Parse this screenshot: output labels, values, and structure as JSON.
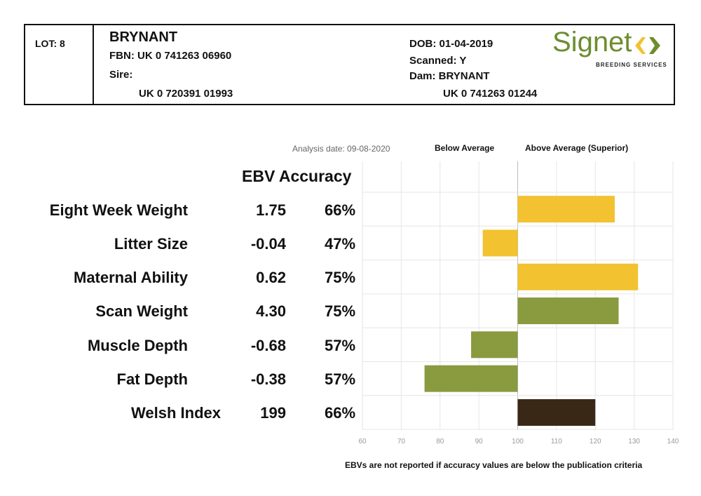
{
  "header": {
    "lot": "LOT: 8",
    "name": "BRYNANT",
    "fbn": "FBN: UK 0 741263 06960",
    "sire_label": "Sire:",
    "sire_id": "UK 0 720391 01993",
    "dob": "DOB: 01-04-2019",
    "scanned": "Scanned: Y",
    "dam": "Dam: BRYNANT",
    "dam_id": "UK 0 741263 01244"
  },
  "logo": {
    "word": "Signet",
    "subtitle": "BREEDING SERVICES",
    "green": "#6d8d2f",
    "yellow": "#f2c230"
  },
  "labels": {
    "analysis_date": "Analysis date: 09-08-2020",
    "below_average": "Below Average",
    "above_average": "Above Average (Superior)",
    "ebv_accuracy": "EBV Accuracy",
    "footnote": "EBVs are not reported if accuracy values are below the publication criteria"
  },
  "rows": [
    {
      "trait": "Eight Week Weight",
      "ebv": "1.75",
      "accuracy": "66%"
    },
    {
      "trait": "Litter Size",
      "ebv": "-0.04",
      "accuracy": "47%"
    },
    {
      "trait": "Maternal Ability",
      "ebv": "0.62",
      "accuracy": "75%"
    },
    {
      "trait": "Scan Weight",
      "ebv": "4.30",
      "accuracy": "75%"
    },
    {
      "trait": "Muscle Depth",
      "ebv": "-0.68",
      "accuracy": "57%"
    },
    {
      "trait": "Fat Depth",
      "ebv": "-0.38",
      "accuracy": "57%"
    },
    {
      "trait": "Welsh Index",
      "ebv": "199",
      "accuracy": "66%"
    }
  ],
  "chart_data": {
    "type": "bar",
    "orientation": "horizontal",
    "categories": [
      "Eight Week Weight",
      "Litter Size",
      "Maternal Ability",
      "Scan Weight",
      "Muscle Depth",
      "Fat Depth",
      "Welsh Index"
    ],
    "values": [
      125,
      91,
      131,
      126,
      88,
      76,
      120
    ],
    "baseline": 100,
    "colors": [
      "#f2c230",
      "#f2c230",
      "#f2c230",
      "#8a9a3f",
      "#8a9a3f",
      "#8a9a3f",
      "#3a2816"
    ],
    "xlim": [
      60,
      140
    ],
    "xticks": [
      60,
      70,
      80,
      90,
      100,
      110,
      120,
      130,
      140
    ],
    "grid": true,
    "legend": "none"
  }
}
